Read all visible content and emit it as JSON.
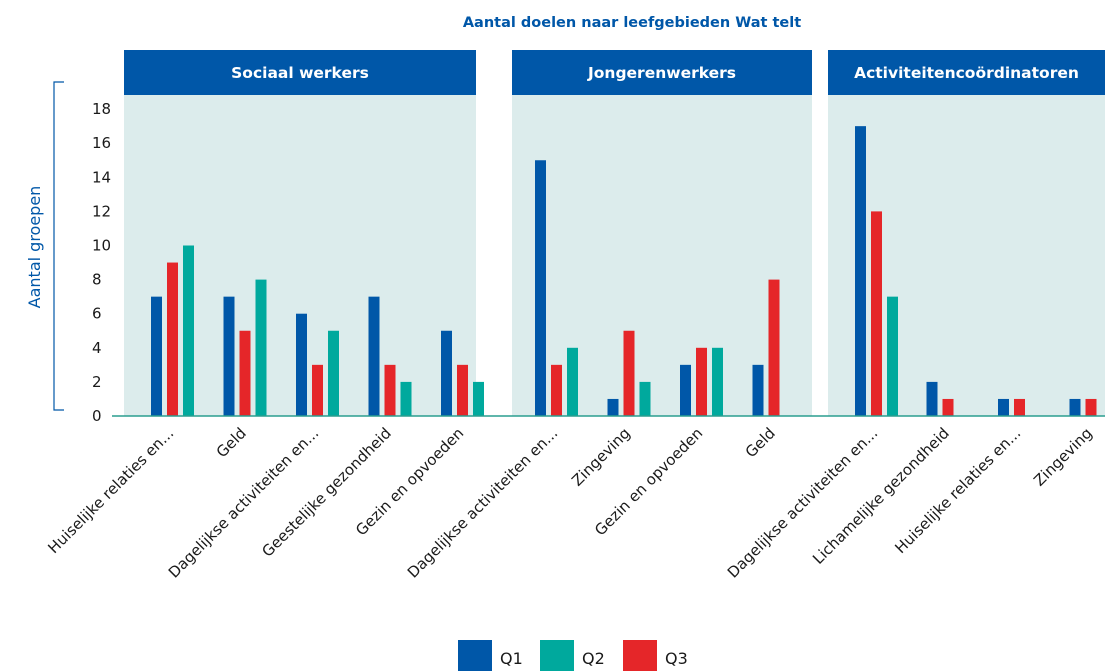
{
  "chart_data": {
    "type": "bar",
    "title": "Aantal doelen naar leefgebieden Wat telt",
    "ylabel": "Aantal groepen",
    "xlabel": "",
    "ylim": [
      0,
      19
    ],
    "yticks": [
      0,
      2,
      4,
      6,
      8,
      10,
      12,
      14,
      16,
      18
    ],
    "grid": false,
    "legend_position": "bottom-center",
    "series_names": [
      "Q1",
      "Q2",
      "Q3"
    ],
    "colors": {
      "Q1": "#0057a8",
      "Q2": "#00a99d",
      "Q3": "#e52629",
      "panel_bg": "#dcecec",
      "panel_header": "#0057a8",
      "title": "#0057a8",
      "axis": "#2a9d8f"
    },
    "panels": [
      {
        "title": "Sociaal werkers",
        "categories": [
          "Huiselijke relaties en...",
          "Geld",
          "Dagelijkse activiteiten en...",
          "Geestelijke gezondheid",
          "Gezin en opvoeden"
        ],
        "series": [
          {
            "name": "Q1",
            "values": [
              7,
              7,
              6,
              7,
              5
            ]
          },
          {
            "name": "Q3",
            "values": [
              9,
              5,
              3,
              3,
              3
            ]
          },
          {
            "name": "Q2",
            "values": [
              10,
              8,
              5,
              2,
              2
            ]
          }
        ]
      },
      {
        "title": "Jongerenwerkers",
        "categories": [
          "Dagelijkse activiteiten en...",
          "Zingeving",
          "Gezin en opvoeden",
          "Geld"
        ],
        "series": [
          {
            "name": "Q1",
            "values": [
              15,
              1,
              3,
              3
            ]
          },
          {
            "name": "Q3",
            "values": [
              3,
              5,
              4,
              8
            ]
          },
          {
            "name": "Q2",
            "values": [
              4,
              2,
              4,
              null
            ]
          }
        ]
      },
      {
        "title": "Activiteitencoördinatoren",
        "categories": [
          "Dagelijkse activiteiten en...",
          "Lichamelijke gezondheid",
          "Huiselijke relaties en...",
          "Zingeving"
        ],
        "series": [
          {
            "name": "Q1",
            "values": [
              17,
              2,
              1,
              1
            ]
          },
          {
            "name": "Q3",
            "values": [
              12,
              1,
              1,
              1
            ]
          },
          {
            "name": "Q2",
            "values": [
              7,
              null,
              null,
              null
            ]
          }
        ]
      }
    ]
  }
}
